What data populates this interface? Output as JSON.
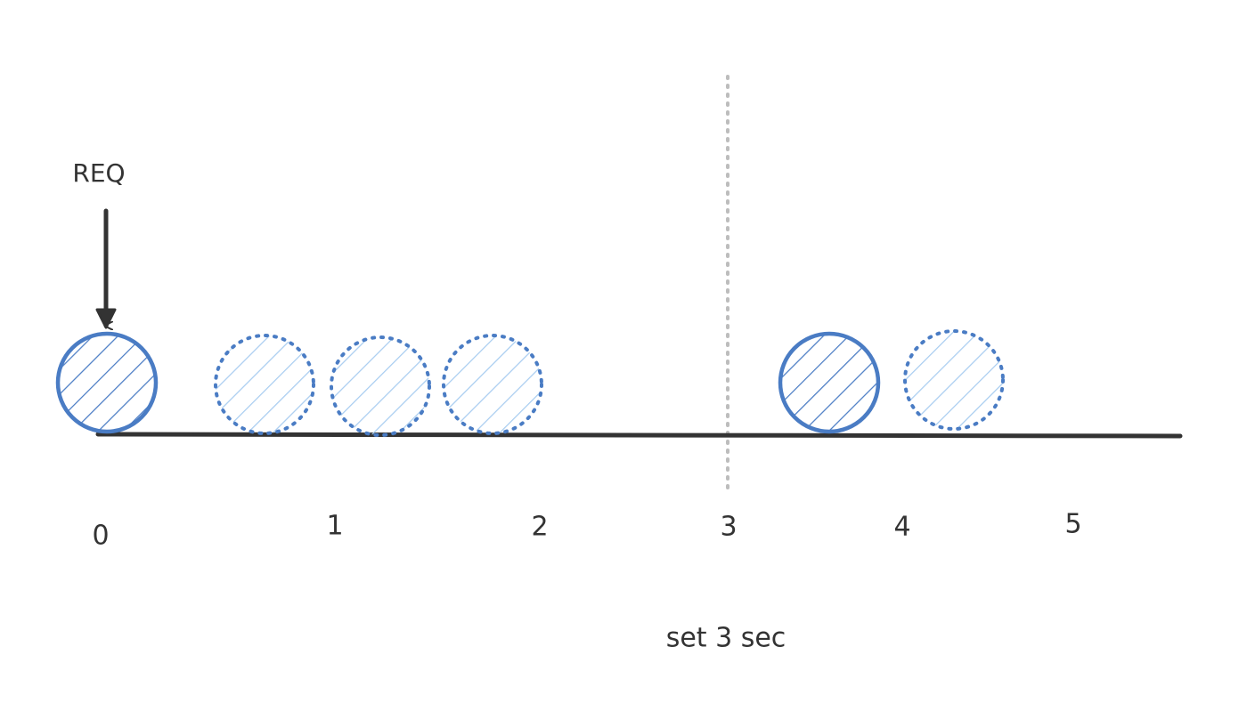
{
  "annotation": "REQ",
  "timeline": {
    "labels": [
      "0",
      "1",
      "2",
      "3",
      "4",
      "5"
    ]
  },
  "caption": "set 3 sec"
}
